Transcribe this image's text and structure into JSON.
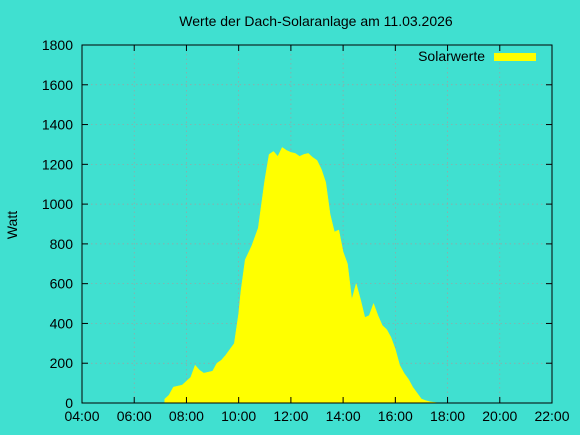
{
  "chart_data": {
    "type": "area",
    "title": "Werte der Dach-Solaranlage am 11.03.2026",
    "ylabel": "Watt",
    "xlabel": "",
    "legend": {
      "label": "Solarwerte",
      "placement": "top-right"
    },
    "grid": true,
    "xlim": [
      "04:00",
      "22:00"
    ],
    "ylim": [
      0,
      1800
    ],
    "x_ticks": [
      "04:00",
      "06:00",
      "08:00",
      "10:00",
      "12:00",
      "14:00",
      "16:00",
      "18:00",
      "20:00",
      "22:00"
    ],
    "y_ticks": [
      "0",
      "200",
      "400",
      "600",
      "800",
      "1000",
      "1200",
      "1400",
      "1600",
      "1800"
    ],
    "colors": {
      "background": "#40e0d0",
      "fill": "#ffff00",
      "grid": "#a0a0a0",
      "axis": "#000000"
    },
    "series": [
      {
        "name": "Solarwerte",
        "x": [
          "07:10",
          "07:20",
          "07:30",
          "07:40",
          "07:50",
          "08:00",
          "08:10",
          "08:20",
          "08:30",
          "08:40",
          "08:50",
          "09:00",
          "09:10",
          "09:20",
          "09:30",
          "09:40",
          "09:50",
          "10:00",
          "10:05",
          "10:15",
          "10:30",
          "10:45",
          "11:00",
          "11:10",
          "11:20",
          "11:30",
          "11:40",
          "11:50",
          "12:00",
          "12:10",
          "12:20",
          "12:30",
          "12:40",
          "12:50",
          "13:00",
          "13:10",
          "13:20",
          "13:30",
          "13:40",
          "13:50",
          "14:00",
          "14:10",
          "14:20",
          "14:30",
          "14:40",
          "14:50",
          "15:00",
          "15:10",
          "15:20",
          "15:30",
          "15:40",
          "15:50",
          "16:00",
          "16:10",
          "16:20",
          "16:30",
          "16:40",
          "16:50",
          "17:00",
          "17:10",
          "17:20",
          "17:30",
          "17:40",
          "17:50"
        ],
        "values": [
          20,
          40,
          80,
          85,
          90,
          110,
          130,
          190,
          165,
          150,
          155,
          160,
          200,
          215,
          240,
          270,
          300,
          450,
          560,
          720,
          790,
          880,
          1120,
          1250,
          1265,
          1240,
          1285,
          1270,
          1260,
          1255,
          1240,
          1250,
          1255,
          1235,
          1220,
          1175,
          1110,
          950,
          860,
          870,
          760,
          700,
          520,
          600,
          520,
          430,
          440,
          500,
          440,
          390,
          370,
          330,
          270,
          190,
          150,
          120,
          80,
          50,
          20,
          12,
          6,
          3,
          0,
          0
        ]
      }
    ]
  }
}
